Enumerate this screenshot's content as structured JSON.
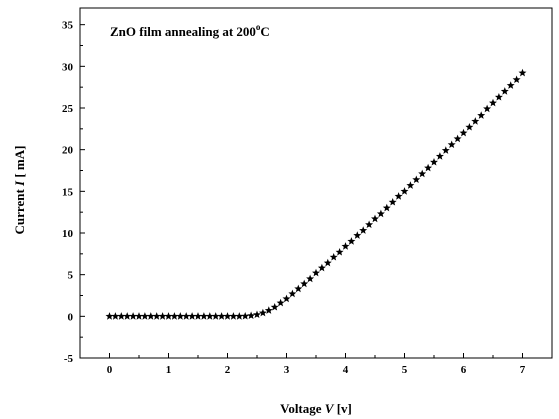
{
  "chart_data": {
    "type": "scatter",
    "title": "",
    "annotation": {
      "text": "ZnO film annealing at 200",
      "sup": "o",
      "unit": "C"
    },
    "xlabel": {
      "prefix": "Voltage ",
      "symbol": "V",
      "unit": " [v]"
    },
    "ylabel": {
      "prefix": "Current ",
      "symbol": "I",
      "unit": " [ mA]"
    },
    "xlim": [
      -0.5,
      7.5
    ],
    "ylim": [
      -5,
      37
    ],
    "xticks": [
      0,
      1,
      2,
      3,
      4,
      5,
      6,
      7
    ],
    "yticks": [
      -5,
      0,
      5,
      10,
      15,
      20,
      25,
      30,
      35
    ],
    "grid": false,
    "marker": "star",
    "series": [
      {
        "x": [
          0.0,
          0.1,
          0.2,
          0.3,
          0.4,
          0.5,
          0.6,
          0.7,
          0.8,
          0.9,
          1.0,
          1.1,
          1.2,
          1.3,
          1.4,
          1.5,
          1.6,
          1.7,
          1.8,
          1.9,
          2.0,
          2.1,
          2.2,
          2.3,
          2.4,
          2.5,
          2.6,
          2.7,
          2.8,
          2.9,
          3.0,
          3.1,
          3.2,
          3.3,
          3.4,
          3.5,
          3.6,
          3.7,
          3.8,
          3.9,
          4.0,
          4.1,
          4.2,
          4.3,
          4.4,
          4.5,
          4.6,
          4.7,
          4.8,
          4.9,
          5.0,
          5.1,
          5.2,
          5.3,
          5.4,
          5.5,
          5.6,
          5.7,
          5.8,
          5.9,
          6.0,
          6.1,
          6.2,
          6.3,
          6.4,
          6.5,
          6.6,
          6.7,
          6.8,
          6.9,
          7.0
        ],
        "y": [
          0,
          0,
          0,
          0,
          0,
          0,
          0,
          0,
          0,
          0,
          0,
          0,
          0,
          0,
          0,
          0,
          0,
          0,
          0,
          0,
          0,
          0,
          0,
          0.02,
          0.08,
          0.2,
          0.4,
          0.7,
          1.1,
          1.6,
          2.1,
          2.7,
          3.3,
          3.9,
          4.5,
          5.2,
          5.8,
          6.4,
          7.1,
          7.7,
          8.4,
          9.0,
          9.7,
          10.3,
          11.0,
          11.7,
          12.3,
          13.0,
          13.7,
          14.4,
          15.0,
          15.7,
          16.4,
          17.1,
          17.8,
          18.5,
          19.2,
          19.9,
          20.6,
          21.3,
          22.0,
          22.7,
          23.4,
          24.1,
          24.9,
          25.6,
          26.3,
          27.0,
          27.7,
          28.4,
          29.2
        ]
      }
    ]
  }
}
